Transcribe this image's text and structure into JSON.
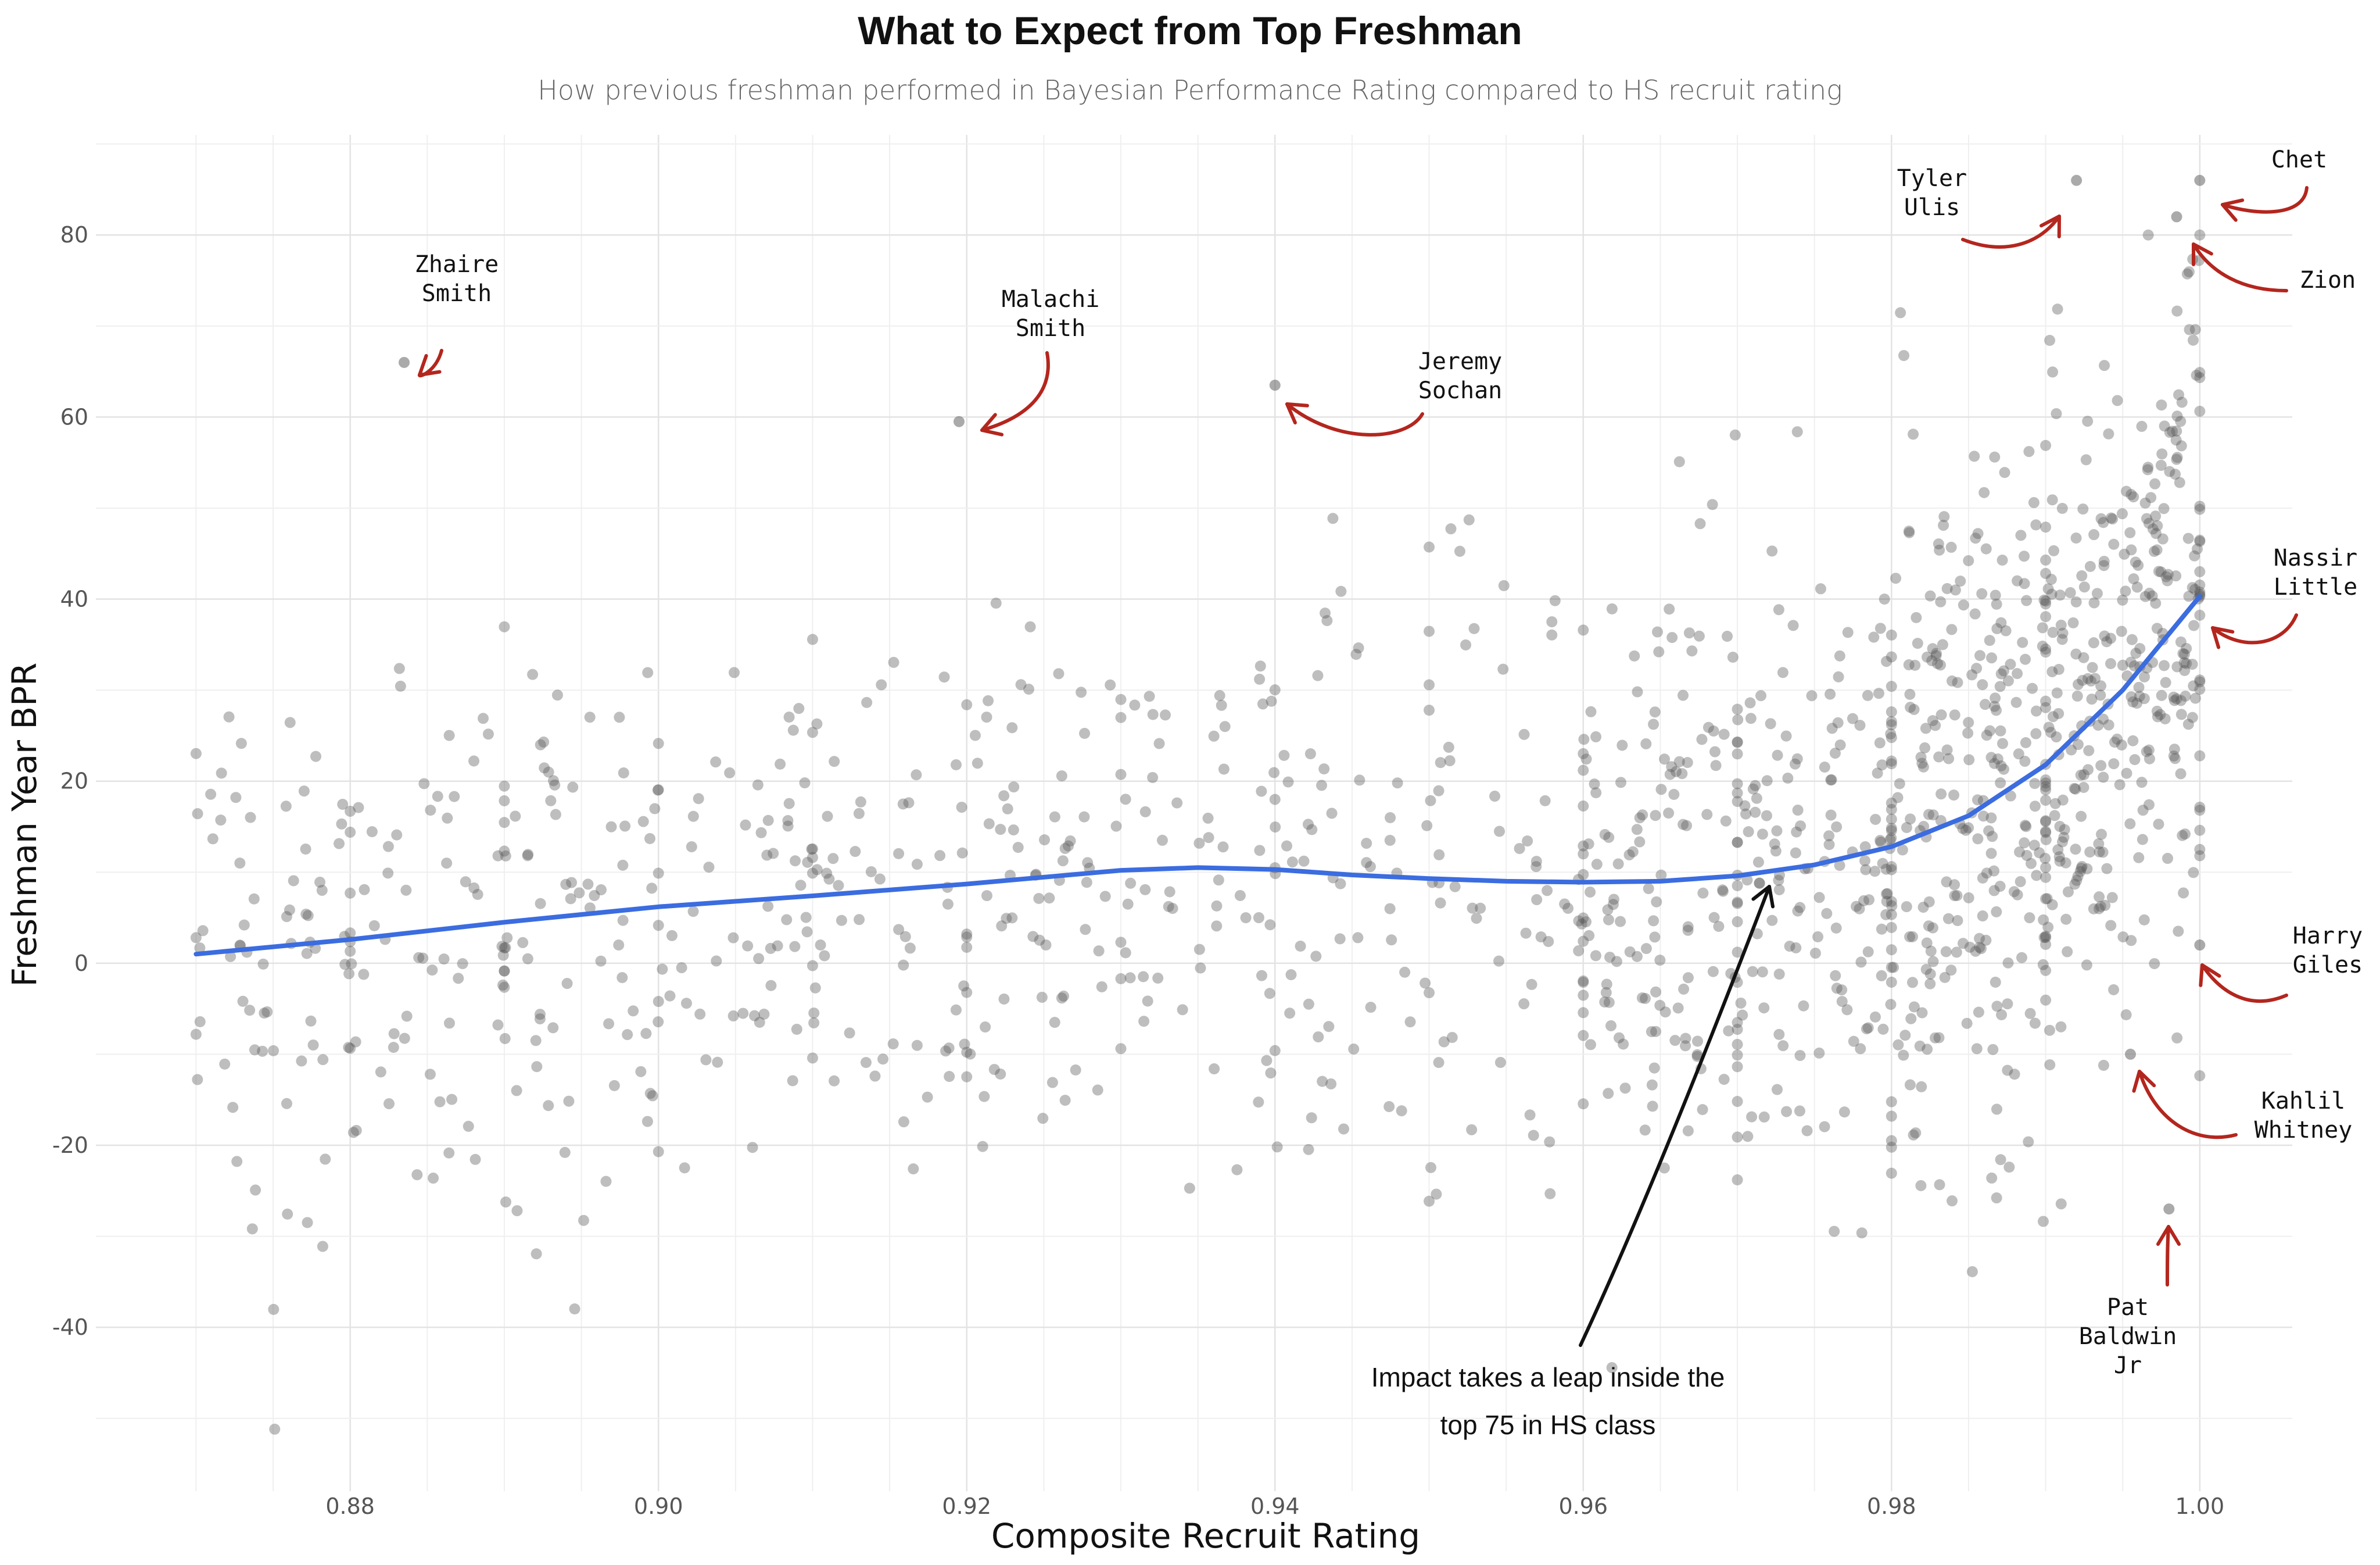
{
  "title": "What to Expect from Top Freshman",
  "subtitle": "How previous freshman performed in Bayesian Performance Rating compared to HS recruit rating",
  "chart_data": {
    "type": "scatter",
    "xlabel": "Composite Recruit Rating",
    "ylabel": "Freshman Year BPR",
    "xlim": [
      0.8635,
      1.006
    ],
    "ylim": [
      -58,
      91
    ],
    "x_ticks": [
      "0.88",
      "0.90",
      "0.92",
      "0.94",
      "0.96",
      "0.98",
      "1.00"
    ],
    "y_ticks": [
      "-40",
      "-20",
      "0",
      "20",
      "40",
      "60",
      "80"
    ],
    "grid": true,
    "point_color": "#555555",
    "trend_color": "#3b6ce0",
    "annotation_color": "#b3261e",
    "trend": [
      [
        0.87,
        1.0
      ],
      [
        0.88,
        2.6
      ],
      [
        0.89,
        4.5
      ],
      [
        0.9,
        6.2
      ],
      [
        0.91,
        7.4
      ],
      [
        0.92,
        8.7
      ],
      [
        0.93,
        10.2
      ],
      [
        0.935,
        10.5
      ],
      [
        0.94,
        10.3
      ],
      [
        0.945,
        9.7
      ],
      [
        0.95,
        9.3
      ],
      [
        0.955,
        9.0
      ],
      [
        0.96,
        8.9
      ],
      [
        0.965,
        9.0
      ],
      [
        0.97,
        9.6
      ],
      [
        0.975,
        10.8
      ],
      [
        0.98,
        12.8
      ],
      [
        0.985,
        16.2
      ],
      [
        0.99,
        21.8
      ],
      [
        0.995,
        30.0
      ],
      [
        1.0,
        40.3
      ]
    ],
    "named_points": [
      {
        "name": "Zhaire Smith",
        "x": 0.8835,
        "y": 66
      },
      {
        "name": "Malachi Smith",
        "x": 0.9195,
        "y": 59.5
      },
      {
        "name": "Jeremy Sochan",
        "x": 0.94,
        "y": 63.5
      },
      {
        "name": "Tyler Ulis",
        "x": 0.992,
        "y": 86
      },
      {
        "name": "Chet",
        "x": 1.0,
        "y": 86
      },
      {
        "name": "Zion",
        "x": 0.9985,
        "y": 82
      },
      {
        "name": "Nassir Little",
        "x": 1.0,
        "y": 40.5
      },
      {
        "name": "Harry Giles",
        "x": 1.0,
        "y": 2
      },
      {
        "name": "Kahlil Whitney",
        "x": 0.9955,
        "y": -10
      },
      {
        "name": "Pat Baldwin Jr",
        "x": 0.998,
        "y": -27
      }
    ],
    "annotations": {
      "zhaire": [
        "Zhaire",
        "Smith"
      ],
      "malachi": [
        "Malachi",
        "Smith"
      ],
      "jeremy": [
        "Jeremy",
        "Sochan"
      ],
      "tyler": [
        "Tyler",
        "Ulis"
      ],
      "chet": [
        "Chet"
      ],
      "zion": [
        "Zion"
      ],
      "nassir": [
        "Nassir",
        "Little"
      ],
      "harry": [
        "Harry",
        "Giles"
      ],
      "kahlil": [
        "Kahlil",
        "Whitney"
      ],
      "pat": [
        "Pat",
        "Baldwin",
        "Jr"
      ],
      "leap": [
        "Impact takes a leap inside the",
        "top 75 in HS class"
      ]
    }
  }
}
